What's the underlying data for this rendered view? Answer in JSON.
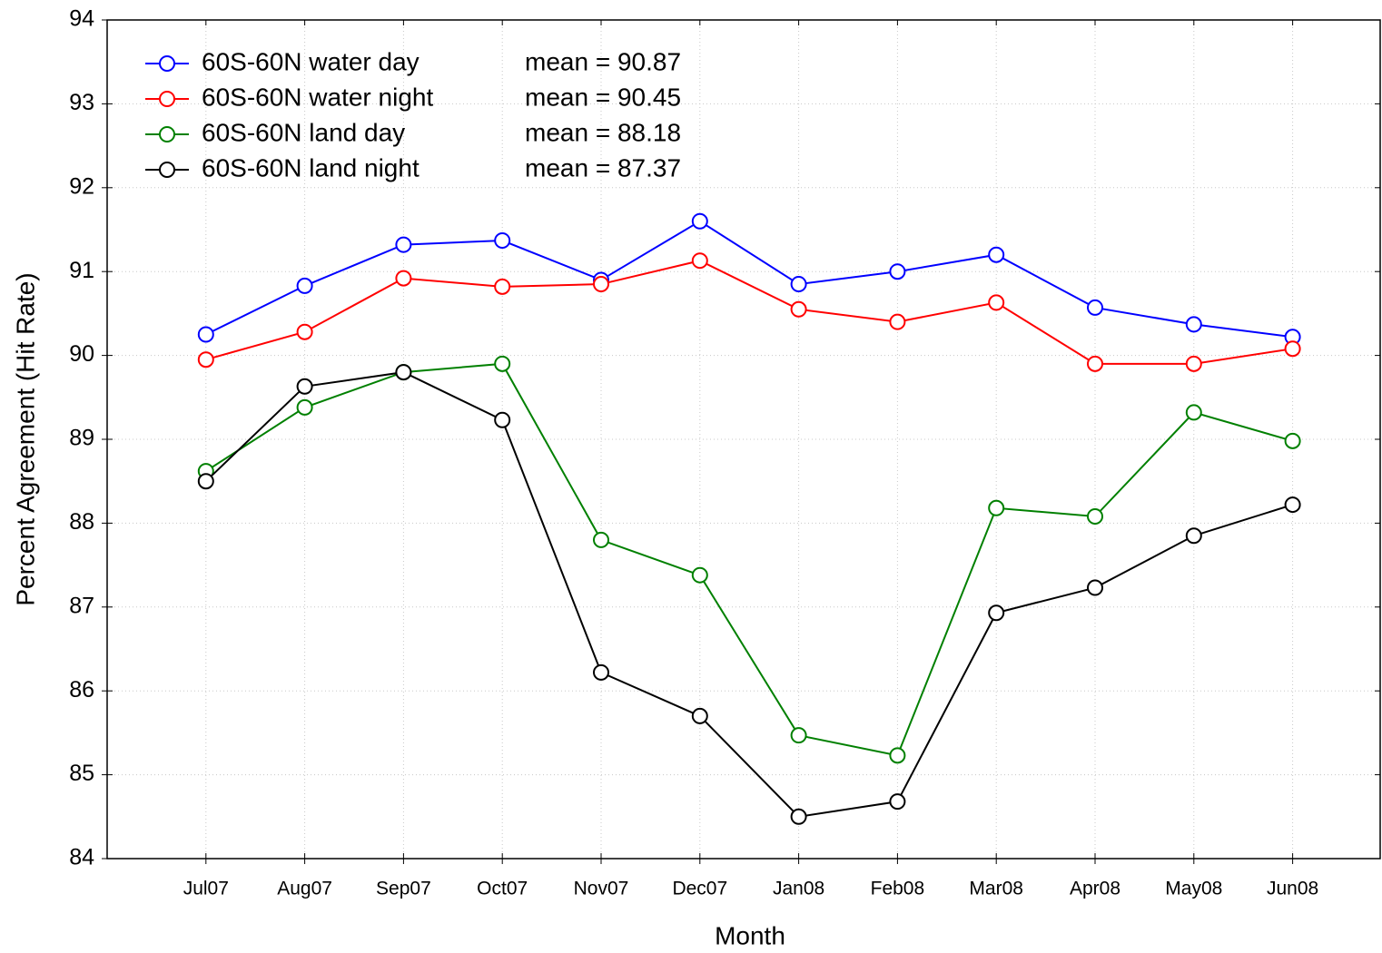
{
  "chart_data": {
    "type": "line",
    "x_label": "Month",
    "y_label": "Percent Agreement (Hit Rate)",
    "categories": [
      "Jul07",
      "Aug07",
      "Sep07",
      "Oct07",
      "Nov07",
      "Dec07",
      "Jan08",
      "Feb08",
      "Mar08",
      "Apr08",
      "May08",
      "Jun08"
    ],
    "series": [
      {
        "name": "60S-60N water day",
        "mean_label": "mean = 90.87",
        "color": "#0000ff",
        "values": [
          90.25,
          90.83,
          91.32,
          91.37,
          90.9,
          91.6,
          90.85,
          91.0,
          91.2,
          90.57,
          90.37,
          90.22
        ]
      },
      {
        "name": "60S-60N water night",
        "mean_label": "mean = 90.45",
        "color": "#ff0000",
        "values": [
          89.95,
          90.28,
          90.92,
          90.82,
          90.85,
          91.13,
          90.55,
          90.4,
          90.63,
          89.9,
          89.9,
          90.08
        ]
      },
      {
        "name": "60S-60N land day",
        "mean_label": "mean = 88.18",
        "color": "#008000",
        "values": [
          88.62,
          89.38,
          89.8,
          89.9,
          87.8,
          87.38,
          85.47,
          85.23,
          88.18,
          88.08,
          89.32,
          88.98
        ]
      },
      {
        "name": "60S-60N land night",
        "mean_label": "mean = 87.37",
        "color": "#000000",
        "values": [
          88.5,
          89.63,
          89.8,
          89.23,
          86.22,
          85.7,
          84.5,
          84.68,
          86.93,
          87.23,
          87.85,
          88.22
        ]
      }
    ],
    "ylim": [
      84,
      94
    ],
    "yticks": [
      84,
      85,
      86,
      87,
      88,
      89,
      90,
      91,
      92,
      93,
      94
    ],
    "grid": true,
    "legend": "upper left"
  }
}
